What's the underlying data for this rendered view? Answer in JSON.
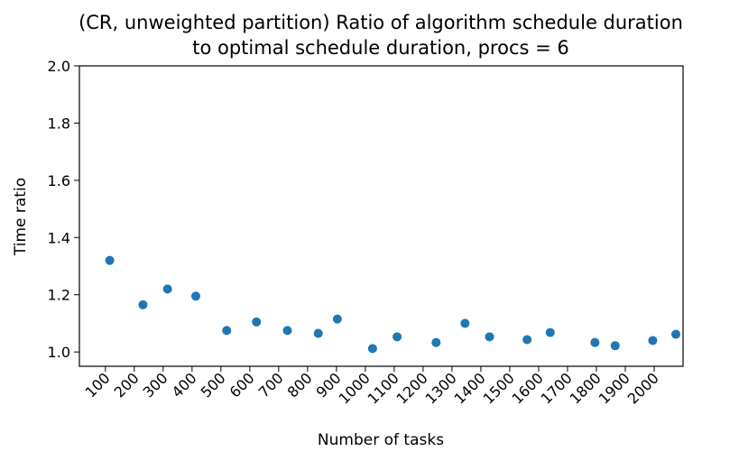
{
  "chart_data": {
    "type": "scatter",
    "title_line1": "(CR, unweighted partition) Ratio of algorithm schedule duration",
    "title_line2": "to optimal schedule duration, procs = 6",
    "xlabel": "Number of tasks",
    "ylabel": "Time ratio",
    "xlim": [
      10,
      2100
    ],
    "ylim": [
      0.95,
      2.0
    ],
    "x_ticks": [
      100,
      200,
      300,
      400,
      500,
      600,
      700,
      800,
      900,
      1000,
      1100,
      1200,
      1300,
      1400,
      1500,
      1600,
      1700,
      1800,
      1900,
      2000
    ],
    "x_tick_labels": [
      "100",
      "200",
      "300",
      "400",
      "500",
      "600",
      "700",
      "800",
      "900",
      "1000",
      "1100",
      "1200",
      "1300",
      "1400",
      "1500",
      "1600",
      "1700",
      "1800",
      "1900",
      "2000"
    ],
    "y_ticks": [
      1.0,
      1.2,
      1.4,
      1.6,
      1.8,
      2.0
    ],
    "y_tick_labels": [
      "1.0",
      "1.2",
      "1.4",
      "1.6",
      "1.8",
      "2.0"
    ],
    "grid": false,
    "color": "#1f77b4",
    "points": [
      {
        "x": 115,
        "y": 1.32
      },
      {
        "x": 230,
        "y": 1.165
      },
      {
        "x": 315,
        "y": 1.22
      },
      {
        "x": 413,
        "y": 1.195
      },
      {
        "x": 520,
        "y": 1.075
      },
      {
        "x": 623,
        "y": 1.105
      },
      {
        "x": 730,
        "y": 1.075
      },
      {
        "x": 837,
        "y": 1.065
      },
      {
        "x": 903,
        "y": 1.115
      },
      {
        "x": 1025,
        "y": 1.012
      },
      {
        "x": 1110,
        "y": 1.053
      },
      {
        "x": 1245,
        "y": 1.033
      },
      {
        "x": 1345,
        "y": 1.1
      },
      {
        "x": 1430,
        "y": 1.053
      },
      {
        "x": 1560,
        "y": 1.043
      },
      {
        "x": 1640,
        "y": 1.068
      },
      {
        "x": 1795,
        "y": 1.033
      },
      {
        "x": 1865,
        "y": 1.022
      },
      {
        "x": 1995,
        "y": 1.04
      },
      {
        "x": 2075,
        "y": 1.062
      }
    ]
  }
}
